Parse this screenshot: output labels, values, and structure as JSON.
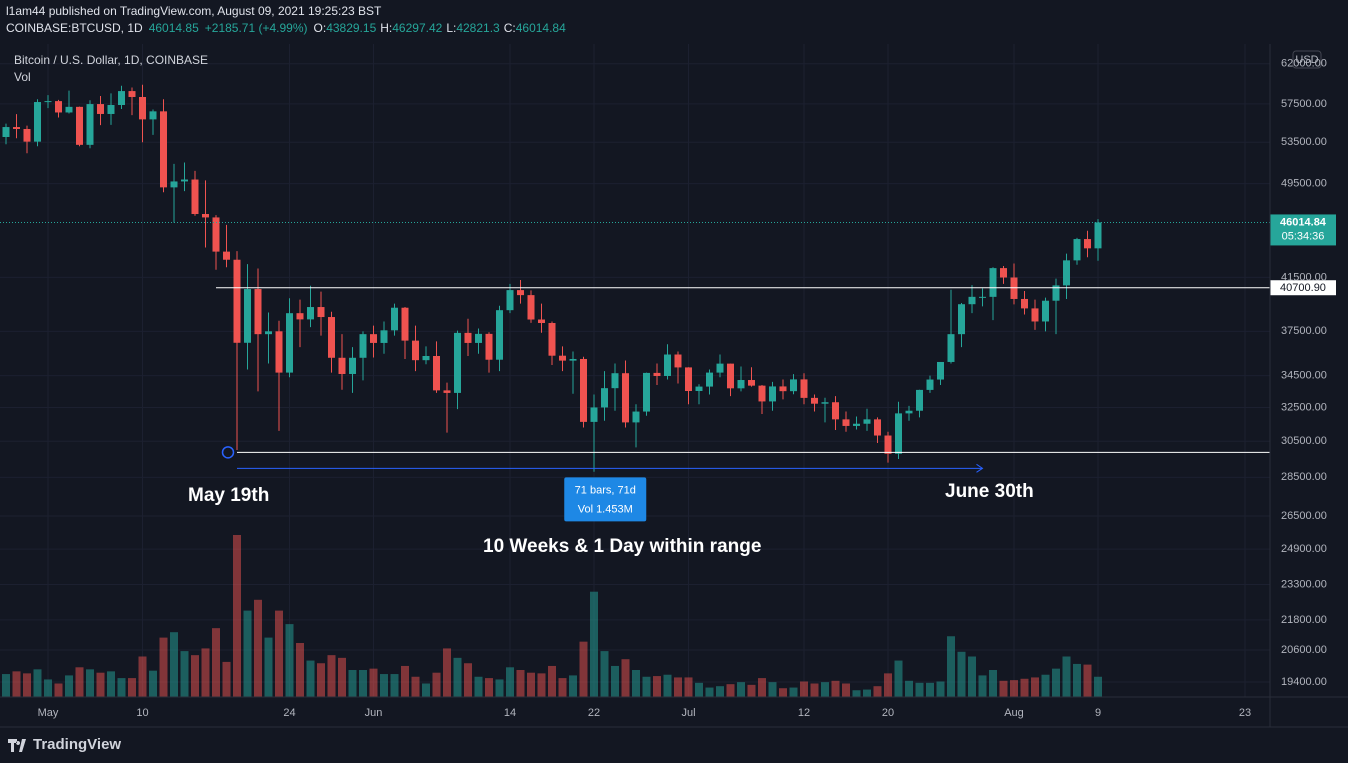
{
  "header": {
    "publisher": "l1am44 published on TradingView.com, August 09, 2021 19:25:23 BST",
    "symbol": "COINBASE:BTCUSD, 1D",
    "price": 46014.85,
    "change": "+2185.71 (+4.99%)",
    "ohlc": [
      {
        "label": "O:",
        "value": 43829.15
      },
      {
        "label": "H:",
        "value": 46297.42
      },
      {
        "label": "L:",
        "value": 42821.3
      },
      {
        "label": "C:",
        "value": 46014.84
      }
    ]
  },
  "footer": {
    "brand": "TradingView"
  },
  "chart_data": {
    "type": "candlestick",
    "title": "Bitcoin / U.S. Dollar, 1D, COINBASE",
    "volume_label": "Vol",
    "currency": "USD",
    "up_color": "#26a69a",
    "down_color": "#ef5350",
    "log_scale": true,
    "grid": true,
    "ylim": [
      18860,
      64350
    ],
    "yticks": [
      {
        "value": 62000,
        "label": "62000.00"
      },
      {
        "value": 57500,
        "label": "57500.00"
      },
      {
        "value": 53500,
        "label": "53500.00"
      },
      {
        "value": 49500,
        "label": "49500.00"
      },
      {
        "value": 41500,
        "label": "41500.00"
      },
      {
        "value": 37500,
        "label": "37500.00"
      },
      {
        "value": 34500,
        "label": "34500.00"
      },
      {
        "value": 32500,
        "label": "32500.00"
      },
      {
        "value": 30500,
        "label": "30500.00"
      },
      {
        "value": 28500,
        "label": "28500.00"
      },
      {
        "value": 26500,
        "label": "26500.00"
      },
      {
        "value": 24900,
        "label": "24900.00"
      },
      {
        "value": 23300,
        "label": "23300.00"
      },
      {
        "value": 21800,
        "label": "21800.00"
      },
      {
        "value": 20600,
        "label": "20600.00"
      },
      {
        "value": 19400,
        "label": "19400.00"
      }
    ],
    "xlim": [
      "04-26",
      "08-26"
    ],
    "xticks": [
      {
        "value": "05-01",
        "label": "May"
      },
      {
        "value": "05-10",
        "label": "10"
      },
      {
        "value": "05-24",
        "label": "24"
      },
      {
        "value": "06-01",
        "label": "Jun"
      },
      {
        "value": "06-14",
        "label": "14"
      },
      {
        "value": "06-22",
        "label": "22"
      },
      {
        "value": "07-01",
        "label": "Jul"
      },
      {
        "value": "07-12",
        "label": "12"
      },
      {
        "value": "07-20",
        "label": "20"
      },
      {
        "value": "08-01",
        "label": "Aug"
      },
      {
        "value": "08-09",
        "label": "9"
      },
      {
        "value": "08-23",
        "label": "23"
      }
    ],
    "x": [
      "04-27",
      "04-28",
      "04-29",
      "04-30",
      "05-01",
      "05-02",
      "05-03",
      "05-04",
      "05-05",
      "05-06",
      "05-07",
      "05-08",
      "05-09",
      "05-10",
      "05-11",
      "05-12",
      "05-13",
      "05-14",
      "05-15",
      "05-16",
      "05-17",
      "05-18",
      "05-19",
      "05-20",
      "05-21",
      "05-22",
      "05-23",
      "05-24",
      "05-25",
      "05-26",
      "05-27",
      "05-28",
      "05-29",
      "05-30",
      "05-31",
      "06-01",
      "06-02",
      "06-03",
      "06-04",
      "06-05",
      "06-06",
      "06-07",
      "06-08",
      "06-09",
      "06-10",
      "06-11",
      "06-12",
      "06-13",
      "06-14",
      "06-15",
      "06-16",
      "06-17",
      "06-18",
      "06-19",
      "06-20",
      "06-21",
      "06-22",
      "06-23",
      "06-24",
      "06-25",
      "06-26",
      "06-27",
      "06-28",
      "06-29",
      "06-30",
      "07-01",
      "07-02",
      "07-03",
      "07-04",
      "07-05",
      "07-06",
      "07-07",
      "07-08",
      "07-09",
      "07-10",
      "07-11",
      "07-12",
      "07-13",
      "07-14",
      "07-15",
      "07-16",
      "07-17",
      "07-18",
      "07-19",
      "07-20",
      "07-21",
      "07-22",
      "07-23",
      "07-24",
      "07-25",
      "07-26",
      "07-27",
      "07-28",
      "07-29",
      "07-30",
      "07-31",
      "08-01",
      "08-02",
      "08-03",
      "08-04",
      "08-05",
      "08-06",
      "08-07",
      "08-08",
      "08-09"
    ],
    "open": [
      54030,
      55050,
      54850,
      53560,
      57700,
      57800,
      56580,
      57180,
      53240,
      57480,
      56420,
      57380,
      58900,
      58250,
      55850,
      56700,
      49150,
      49700,
      49880,
      46750,
      46450,
      43560,
      42900,
      36700,
      40600,
      37300,
      37500,
      34700,
      38800,
      38350,
      39250,
      38520,
      35680,
      34610,
      35680,
      37300,
      36690,
      37570,
      39200,
      36850,
      35520,
      35800,
      33560,
      33400,
      37390,
      36690,
      37320,
      35550,
      39020,
      40520,
      40140,
      38340,
      38090,
      35820,
      35490,
      35600,
      31630,
      32500,
      33700,
      34660,
      31600,
      32250,
      34680,
      34480,
      35900,
      35040,
      33520,
      33800,
      34700,
      35290,
      33690,
      34220,
      33860,
      32870,
      33810,
      33510,
      34260,
      33090,
      32730,
      32820,
      31780,
      31390,
      31520,
      31780,
      30830,
      29790,
      32140,
      32300,
      33590,
      34250,
      35400,
      37300,
      39460,
      40010,
      40010,
      42230,
      41490,
      39850,
      39150,
      38200,
      39720,
      40880,
      42850,
      44600,
      43829.15
    ],
    "high": [
      55400,
      56400,
      55200,
      58000,
      58450,
      57940,
      58950,
      57200,
      57900,
      58360,
      58650,
      59500,
      59300,
      59600,
      56900,
      58000,
      51370,
      51500,
      50700,
      49800,
      46650,
      45800,
      43600,
      42550,
      42200,
      38850,
      38250,
      39900,
      39800,
      40850,
      40400,
      38900,
      37300,
      36400,
      37500,
      37900,
      38200,
      39500,
      39250,
      37900,
      36450,
      36800,
      34050,
      37550,
      38400,
      37700,
      37430,
      39350,
      41000,
      41300,
      40500,
      39500,
      38200,
      36450,
      36100,
      35750,
      33300,
      34800,
      35300,
      35500,
      32700,
      34700,
      35300,
      36600,
      36100,
      35050,
      33950,
      34900,
      35900,
      35290,
      35100,
      35050,
      33900,
      34100,
      34250,
      34600,
      34660,
      33300,
      33100,
      33200,
      32250,
      31950,
      32420,
      31900,
      31050,
      32850,
      32600,
      33600,
      34500,
      35400,
      40550,
      39550,
      40900,
      40650,
      42300,
      42400,
      42600,
      40450,
      39800,
      39950,
      41400,
      43400,
      44700,
      45300,
      46297.42
    ],
    "low": [
      53300,
      53900,
      52400,
      53100,
      57050,
      56050,
      56470,
      53100,
      52900,
      55250,
      55280,
      56950,
      56300,
      53500,
      54250,
      48700,
      46000,
      48800,
      46600,
      43900,
      42100,
      42300,
      30000,
      34900,
      33500,
      35300,
      31100,
      34400,
      36400,
      37800,
      37200,
      34700,
      33600,
      33400,
      34200,
      35700,
      35950,
      37200,
      35600,
      34800,
      35250,
      33400,
      31000,
      32400,
      35800,
      35950,
      34700,
      34800,
      38800,
      39500,
      38100,
      37400,
      35200,
      34800,
      33350,
      31300,
      28800,
      31700,
      32300,
      31300,
      30150,
      32000,
      33900,
      34250,
      34000,
      32700,
      32700,
      33300,
      34400,
      33200,
      33500,
      33800,
      32100,
      32300,
      33000,
      33320,
      32700,
      32250,
      31600,
      31150,
      31050,
      31180,
      31100,
      30400,
      29300,
      29500,
      31700,
      31900,
      33400,
      33900,
      35300,
      36400,
      38800,
      39300,
      38300,
      41000,
      39450,
      38700,
      37600,
      37500,
      37300,
      39850,
      42500,
      43100,
      42821.3
    ],
    "close": [
      55050,
      54850,
      53560,
      57700,
      57800,
      56580,
      57180,
      53240,
      57480,
      56420,
      57380,
      58900,
      58250,
      55850,
      56700,
      49150,
      49700,
      49880,
      46750,
      46450,
      43560,
      42900,
      36700,
      40600,
      37300,
      37500,
      34700,
      38800,
      38350,
      39250,
      38520,
      35680,
      34610,
      35680,
      37300,
      36690,
      37570,
      39200,
      36850,
      35520,
      35800,
      33560,
      33400,
      37390,
      36690,
      37320,
      35550,
      39020,
      40520,
      40140,
      38340,
      38090,
      35820,
      35490,
      35600,
      31630,
      32500,
      33700,
      34660,
      31600,
      32250,
      34680,
      34480,
      35900,
      35040,
      33520,
      33800,
      34700,
      35290,
      33690,
      34220,
      33860,
      32870,
      33810,
      33510,
      34260,
      33090,
      32730,
      32820,
      31780,
      31390,
      31520,
      31780,
      30830,
      29790,
      32140,
      32300,
      33590,
      34250,
      35400,
      37300,
      39460,
      40010,
      40010,
      42230,
      41490,
      39850,
      39150,
      38200,
      39720,
      40880,
      42850,
      44600,
      43829.15,
      46014.84
    ],
    "volume": [
      17000,
      19000,
      17500,
      20500,
      13000,
      10000,
      16000,
      22000,
      20500,
      18000,
      19000,
      14000,
      14000,
      30000,
      19500,
      44000,
      48000,
      34000,
      31000,
      36000,
      51000,
      26000,
      120000,
      64000,
      72000,
      44000,
      64000,
      54000,
      40000,
      27000,
      25000,
      31000,
      29000,
      20000,
      20000,
      21000,
      17000,
      17000,
      23000,
      15000,
      10000,
      18000,
      36000,
      29000,
      25000,
      15000,
      14000,
      13000,
      22000,
      20000,
      18000,
      17500,
      23000,
      14000,
      16000,
      41000,
      78000,
      34000,
      23000,
      28000,
      20000,
      15000,
      15500,
      16500,
      14500,
      14500,
      10500,
      7000,
      8000,
      9500,
      11000,
      9000,
      14000,
      11000,
      6500,
      7000,
      11500,
      10000,
      11000,
      12000,
      10000,
      5000,
      5500,
      8000,
      17500,
      27000,
      12000,
      10500,
      10500,
      11500,
      45000,
      33500,
      30000,
      16000,
      20000,
      12000,
      12500,
      13500,
      14500,
      16500,
      21000,
      30000,
      24500,
      24000,
      15000
    ],
    "last_price": {
      "value": 46014.84,
      "label": "46014.84",
      "timer": "05:34:36"
    },
    "lines": [
      {
        "value": 40700.9,
        "label": "40700.90",
        "from": "05-17"
      },
      {
        "value": 29870,
        "from": "05-19"
      }
    ],
    "measure": {
      "from": "05-19",
      "to": "07-29",
      "bars": "71 bars, 71d",
      "volume": "Vol 1.453M"
    },
    "annotations": [
      "May 19th",
      "June 30th",
      "10 Weeks & 1 Day within range"
    ]
  }
}
